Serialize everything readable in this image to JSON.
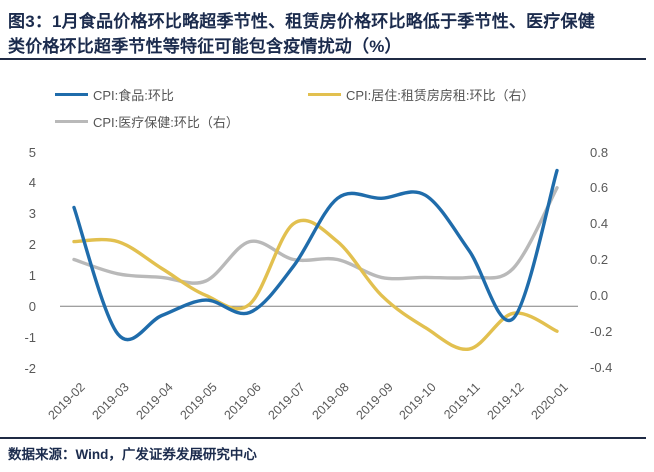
{
  "title": {
    "line1": "图3：1月食品价格环比略超季节性、租赁房价格环比略低于季节性、医疗保健",
    "line2": "类价格环比超季节性等特征可能包含疫情扰动（%）"
  },
  "footer": {
    "source_text": "数据来源：Wind，广发证券发展研究中心"
  },
  "legend": {
    "items": [
      {
        "label": "CPI:食品:环比",
        "color": "#1f6cab"
      },
      {
        "label": "CPI:居住:租赁房房租:环比（右）",
        "color": "#e2c04f"
      },
      {
        "label": "CPI:医疗保健:环比（右）",
        "color": "#b9b9b9"
      }
    ]
  },
  "colors": {
    "title_navy": "#1b2b4d",
    "divider_navy": "#1f2a44",
    "axis_text_gray": "#595959",
    "zero_line_gray": "#808080",
    "series_blue": "#1f6cab",
    "series_yellow": "#e2c04f",
    "series_gray": "#b9b9b9"
  },
  "chart_data": {
    "type": "line",
    "smooth": true,
    "legend_position": "top",
    "grid": "zero-line-only",
    "categories": [
      "2019-02",
      "2019-03",
      "2019-04",
      "2019-05",
      "2019-06",
      "2019-07",
      "2019-08",
      "2019-09",
      "2019-10",
      "2019-11",
      "2019-12",
      "2020-01"
    ],
    "series": [
      {
        "name": "CPI:食品:环比",
        "axis": "left",
        "color": "#1f6cab",
        "values": [
          3.2,
          -0.9,
          -0.3,
          0.2,
          -0.2,
          1.3,
          3.5,
          3.5,
          3.6,
          1.8,
          -0.4,
          4.4
        ]
      },
      {
        "name": "CPI:居住:租赁房房租:环比（右）",
        "axis": "right",
        "color": "#e2c04f",
        "values": [
          0.3,
          0.3,
          0.15,
          0.0,
          -0.05,
          0.4,
          0.3,
          0.0,
          -0.18,
          -0.3,
          -0.1,
          -0.2
        ]
      },
      {
        "name": "CPI:医疗保健:环比（右）",
        "axis": "right",
        "color": "#b9b9b9",
        "values": [
          0.2,
          0.12,
          0.1,
          0.08,
          0.3,
          0.2,
          0.2,
          0.1,
          0.1,
          0.1,
          0.15,
          0.6
        ]
      }
    ],
    "left_axis": {
      "min": -2,
      "max": 5,
      "ticks": [
        "5",
        "4",
        "3",
        "2",
        "1",
        "0",
        "-1",
        "-2"
      ]
    },
    "right_axis": {
      "min": -0.4,
      "max": 0.8,
      "ticks": [
        "0.8",
        "0.6",
        "0.4",
        "0.2",
        "0.0",
        "-0.2",
        "-0.4"
      ]
    }
  }
}
